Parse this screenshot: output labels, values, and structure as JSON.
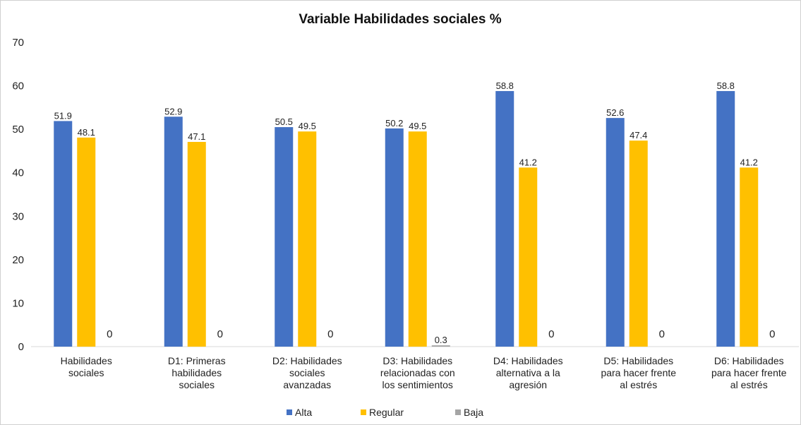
{
  "chart_data": {
    "type": "bar",
    "title": "Variable Habilidades sociales %",
    "xlabel": "",
    "ylabel": "",
    "ylim": [
      0,
      70
    ],
    "yticks": [
      0,
      10,
      20,
      30,
      40,
      50,
      60,
      70
    ],
    "grid": false,
    "legend_position": "bottom",
    "categories": [
      [
        "Habilidades",
        "sociales"
      ],
      [
        "D1: Primeras",
        "habilidades",
        "sociales"
      ],
      [
        "D2: Habilidades",
        "sociales",
        "avanzadas"
      ],
      [
        "D3: Habilidades",
        "relacionadas con",
        "los sentimientos"
      ],
      [
        "D4: Habilidades",
        "alternativa a la",
        "agresión"
      ],
      [
        "D5: Habilidades",
        "para hacer frente",
        "al estrés"
      ],
      [
        "D6: Habilidades",
        "para hacer frente",
        "al estrés"
      ]
    ],
    "series": [
      {
        "name": "Alta",
        "color": "#4472C4",
        "values": [
          51.9,
          52.9,
          50.5,
          50.2,
          58.8,
          52.6,
          58.8
        ]
      },
      {
        "name": "Regular",
        "color": "#FFC000",
        "values": [
          48.1,
          47.1,
          49.5,
          49.5,
          41.2,
          47.4,
          41.2
        ]
      },
      {
        "name": "Baja",
        "color": "#A5A5A5",
        "values": [
          0,
          0,
          0,
          0.3,
          0,
          0,
          0
        ]
      }
    ]
  }
}
